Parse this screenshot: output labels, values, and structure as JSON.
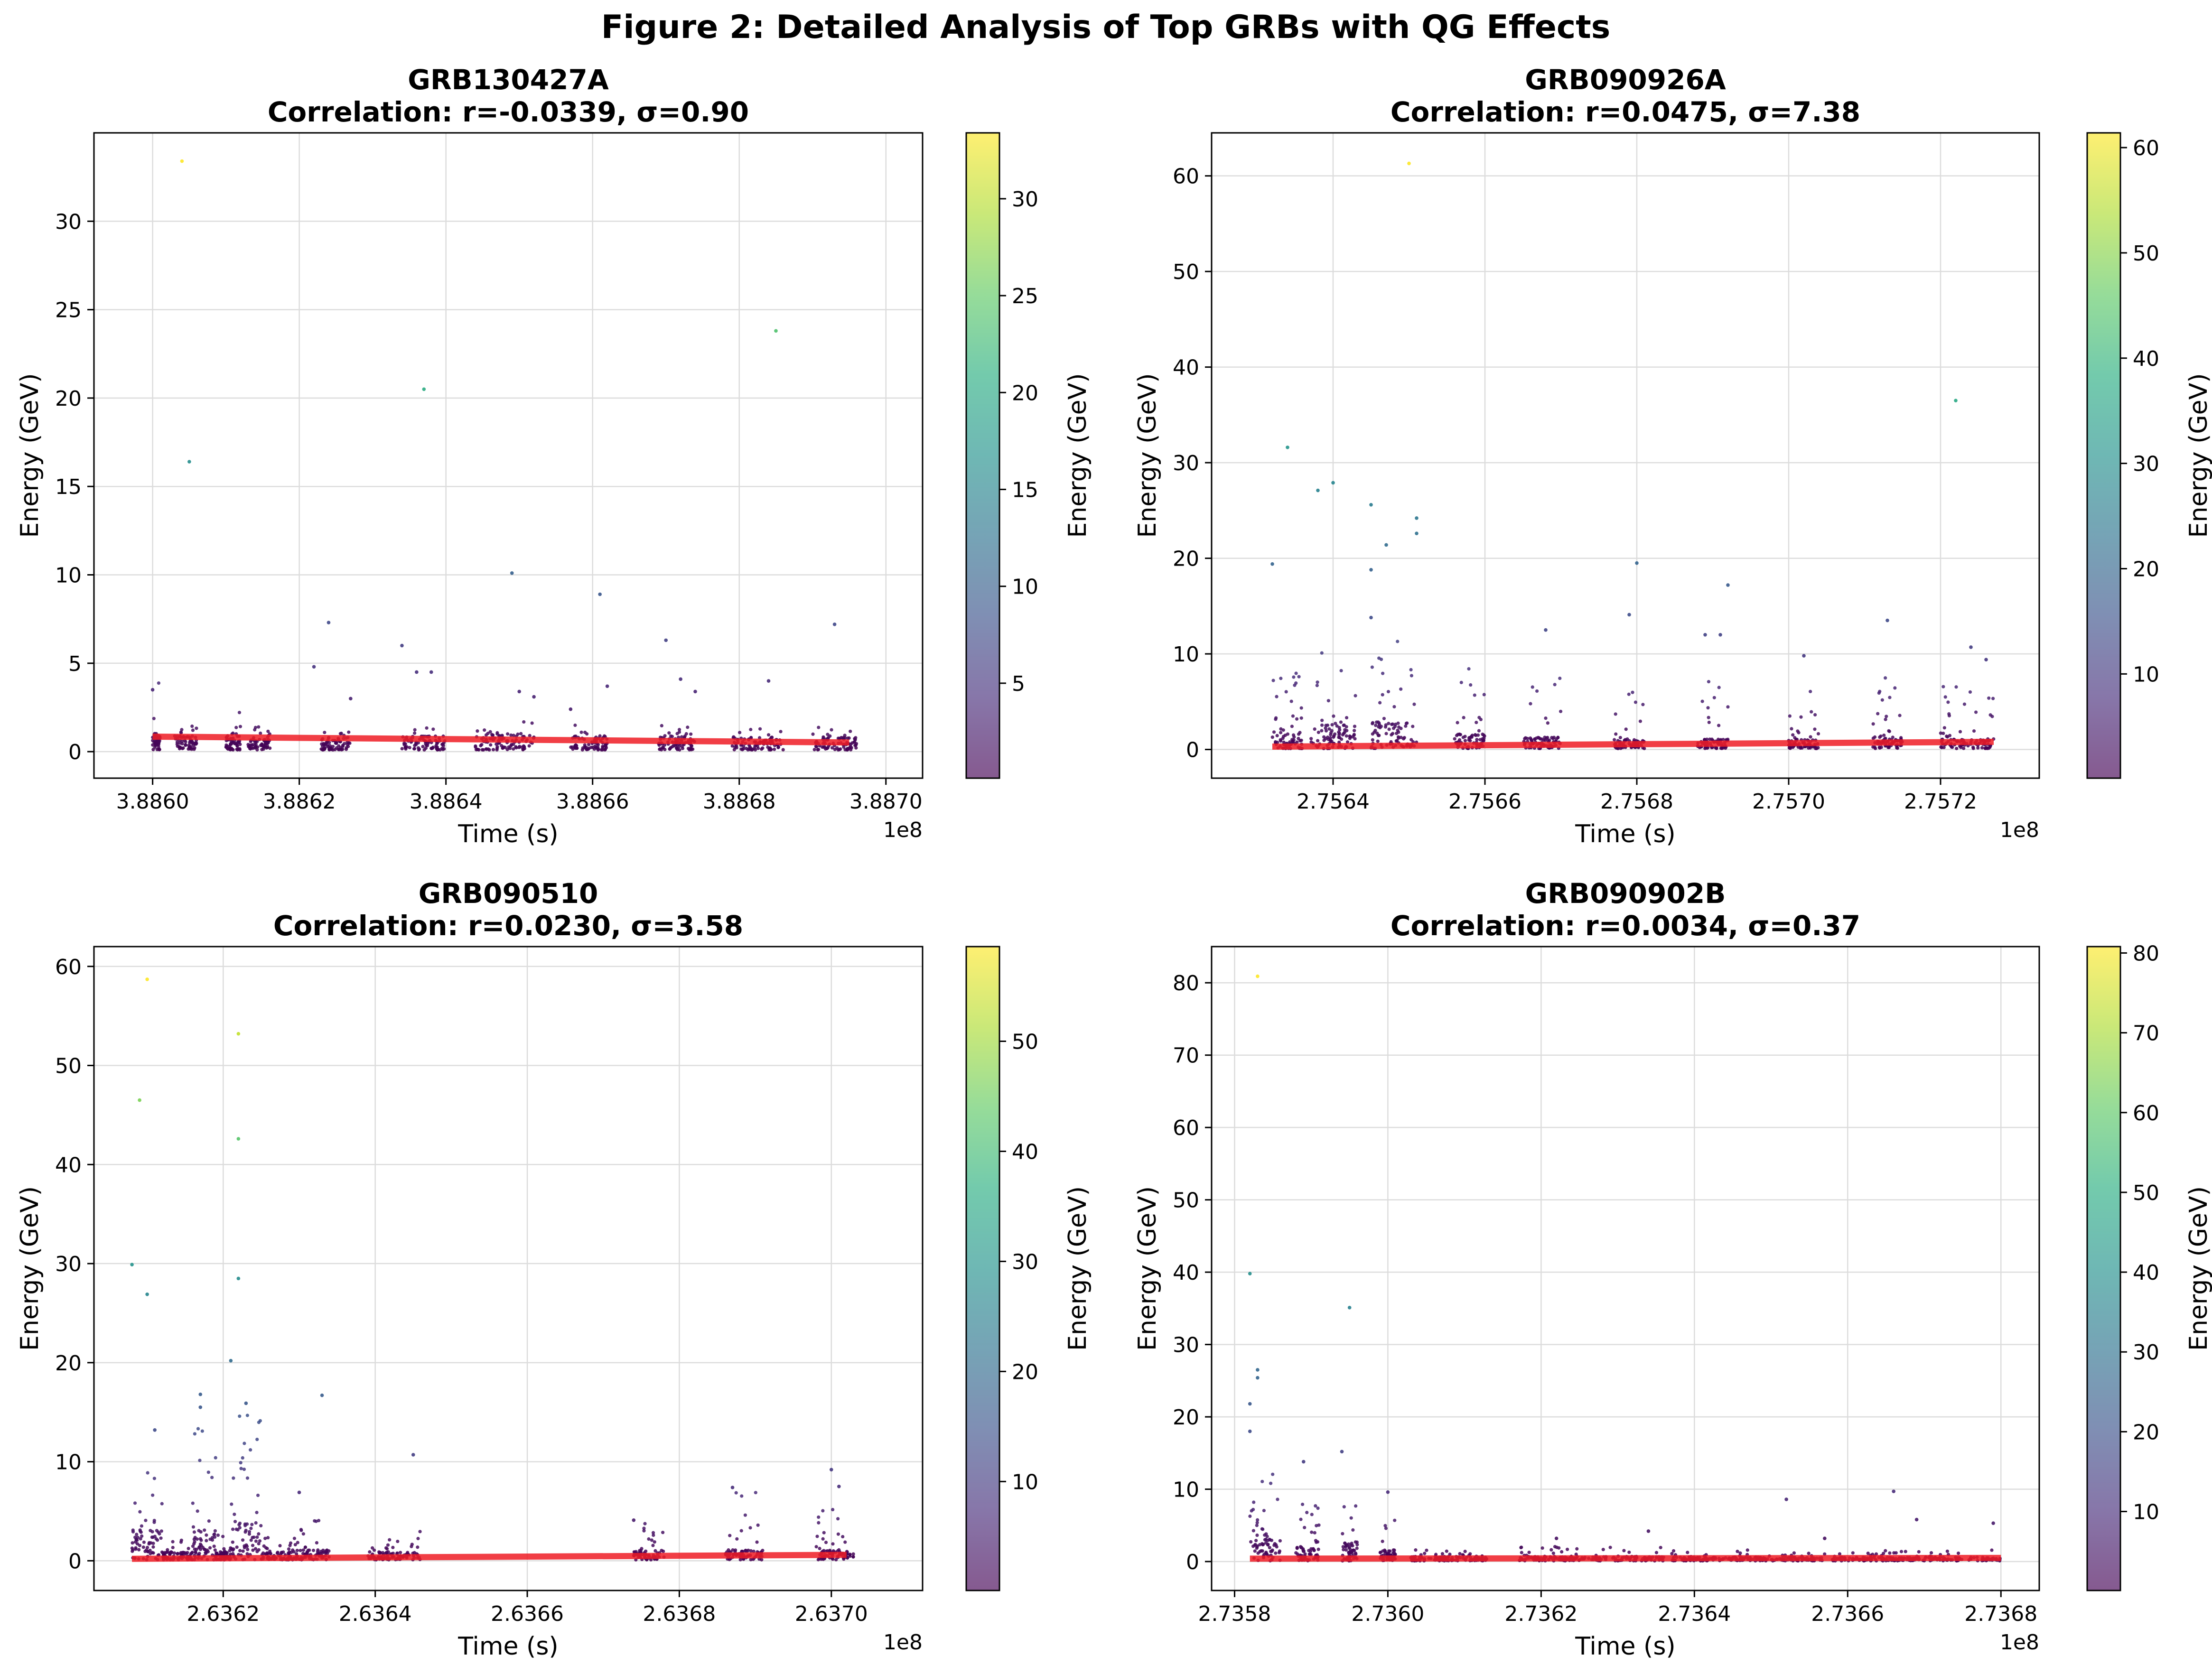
{
  "figure": {
    "suptitle": "Figure 2: Detailed Analysis of Top GRBs with QG Effects"
  },
  "chart_data": [
    {
      "type": "scatter",
      "title_line1": "GRB130427A",
      "title_line2": "Correlation: r=-0.0339, σ=0.90",
      "xlabel": "Time (s)",
      "ylabel": "Energy (GeV)",
      "colorbar_label": "Energy (GeV)",
      "x_offset_label": "1e8",
      "x_scale": 100000000,
      "xlim": [
        3.88592,
        3.88705
      ],
      "ylim": [
        -1.5,
        35
      ],
      "xticks": [
        3.886,
        3.8862,
        3.8864,
        3.8866,
        3.8868,
        3.887
      ],
      "xtick_labels": [
        "3.8860",
        "3.8862",
        "3.8864",
        "3.8866",
        "3.8868",
        "3.8870"
      ],
      "yticks": [
        0,
        5,
        10,
        15,
        20,
        25,
        30
      ],
      "cbar_range": [
        0.1,
        33.4
      ],
      "cbar_ticks": [
        5,
        10,
        15,
        20,
        25,
        30
      ],
      "grid": true,
      "trend_line": [
        [
          3.886,
          0.85
        ],
        [
          3.88695,
          0.52
        ]
      ],
      "clusters": [
        [
          3.886,
          3.88601,
          1.0,
          3.8
        ],
        [
          3.88603,
          3.88606,
          0.8,
          2.0
        ],
        [
          3.8861,
          3.88612,
          0.8,
          2.3
        ],
        [
          3.88613,
          3.88616,
          0.6,
          1.4
        ],
        [
          3.88623,
          3.88627,
          0.7,
          1.2
        ],
        [
          3.88634,
          3.8864,
          0.8,
          1.5
        ],
        [
          3.88644,
          3.88652,
          0.9,
          1.6
        ],
        [
          3.88657,
          3.88662,
          0.8,
          1.5
        ],
        [
          3.88669,
          3.88674,
          0.8,
          1.4
        ],
        [
          3.88679,
          3.88686,
          0.7,
          1.2
        ],
        [
          3.8869,
          3.88696,
          0.7,
          1.3
        ]
      ],
      "highlights": [
        [
          3.88604,
          33.4
        ],
        [
          3.88605,
          16.4
        ],
        [
          3.88637,
          20.5
        ],
        [
          3.88685,
          23.8
        ],
        [
          3.88649,
          10.1
        ],
        [
          3.88661,
          8.9
        ],
        [
          3.88624,
          7.3
        ],
        [
          3.88693,
          7.2
        ],
        [
          3.8867,
          6.3
        ],
        [
          3.88634,
          6.0
        ],
        [
          3.88622,
          4.8
        ],
        [
          3.88636,
          4.5
        ],
        [
          3.88638,
          4.5
        ],
        [
          3.88672,
          4.1
        ],
        [
          3.88684,
          4.0
        ],
        [
          3.8865,
          3.4
        ],
        [
          3.88662,
          3.7
        ],
        [
          3.88674,
          3.4
        ],
        [
          3.88627,
          3.0
        ],
        [
          3.88652,
          3.1
        ],
        [
          3.88657,
          2.4
        ],
        [
          3.886,
          3.5
        ]
      ]
    },
    {
      "type": "scatter",
      "title_line1": "GRB090926A",
      "title_line2": "Correlation: r=0.0475, σ=7.38",
      "xlabel": "Time (s)",
      "ylabel": "Energy (GeV)",
      "colorbar_label": "Energy (GeV)",
      "x_offset_label": "1e8",
      "x_scale": 100000000,
      "xlim": [
        2.75624,
        2.75733
      ],
      "ylim": [
        -3,
        64.5
      ],
      "xticks": [
        2.7564,
        2.7566,
        2.7568,
        2.757,
        2.7572
      ],
      "xtick_labels": [
        "2.7564",
        "2.7566",
        "2.7568",
        "2.7570",
        "2.7572"
      ],
      "yticks": [
        0,
        10,
        20,
        30,
        40,
        50,
        60
      ],
      "cbar_range": [
        0.1,
        61.4
      ],
      "cbar_ticks": [
        10,
        20,
        30,
        40,
        50,
        60
      ],
      "grid": true,
      "trend_line": [
        [
          2.75632,
          0.3
        ],
        [
          2.75727,
          0.8
        ]
      ],
      "clusters": [
        [
          2.75632,
          2.75636,
          1.8,
          8.0
        ],
        [
          2.75637,
          2.75643,
          2.5,
          10.0
        ],
        [
          2.75645,
          2.75651,
          2.8,
          12.0
        ],
        [
          2.75656,
          2.7566,
          1.5,
          9.0
        ],
        [
          2.75665,
          2.7567,
          1.2,
          8.0
        ],
        [
          2.75677,
          2.75681,
          1.0,
          7.0
        ],
        [
          2.75688,
          2.75692,
          1.0,
          7.0
        ],
        [
          2.757,
          2.75704,
          1.0,
          6.0
        ],
        [
          2.75711,
          2.75715,
          1.2,
          8.0
        ],
        [
          2.7572,
          2.75727,
          1.0,
          7.0
        ]
      ],
      "highlights": [
        [
          2.7565,
          61.3
        ],
        [
          2.75722,
          36.5
        ],
        [
          2.75634,
          31.6
        ],
        [
          2.7564,
          27.9
        ],
        [
          2.75638,
          27.1
        ],
        [
          2.75645,
          25.6
        ],
        [
          2.75651,
          24.2
        ],
        [
          2.75651,
          22.6
        ],
        [
          2.75647,
          21.4
        ],
        [
          2.75632,
          19.4
        ],
        [
          2.7568,
          19.5
        ],
        [
          2.75645,
          18.8
        ],
        [
          2.75692,
          17.2
        ],
        [
          2.75679,
          14.1
        ],
        [
          2.75713,
          13.5
        ],
        [
          2.75645,
          13.8
        ],
        [
          2.75668,
          12.5
        ],
        [
          2.75689,
          12.0
        ],
        [
          2.75691,
          12.0
        ],
        [
          2.75702,
          9.8
        ],
        [
          2.75724,
          10.7
        ],
        [
          2.75726,
          9.4
        ]
      ]
    },
    {
      "type": "scatter",
      "title_line1": "GRB090510",
      "title_line2": "Correlation: r=0.0230, σ=3.58",
      "xlabel": "Time (s)",
      "ylabel": "Energy (GeV)",
      "colorbar_label": "Energy (GeV)",
      "x_offset_label": "1e8",
      "x_scale": 100000000,
      "xlim": [
        2.63603,
        2.63712
      ],
      "ylim": [
        -3,
        62
      ],
      "xticks": [
        2.6362,
        2.6364,
        2.6366,
        2.6368,
        2.637
      ],
      "xtick_labels": [
        "2.6362",
        "2.6364",
        "2.6366",
        "2.6368",
        "2.6370"
      ],
      "yticks": [
        0,
        10,
        20,
        30,
        40,
        50,
        60
      ],
      "cbar_range": [
        0.1,
        58.6
      ],
      "cbar_ticks": [
        10,
        20,
        30,
        40,
        50
      ],
      "grid": true,
      "trend_line": [
        [
          2.63608,
          0.2
        ],
        [
          2.63702,
          0.6
        ]
      ],
      "clusters": [
        [
          2.63608,
          2.63612,
          3.0,
          12.0
        ],
        [
          2.63612,
          2.63616,
          0.8,
          3.0
        ],
        [
          2.63616,
          2.63619,
          3.0,
          14.0
        ],
        [
          2.63619,
          2.63621,
          0.8,
          3.0
        ],
        [
          2.63621,
          2.63625,
          4.0,
          15.0
        ],
        [
          2.63625,
          2.63629,
          0.8,
          2.5
        ],
        [
          2.63629,
          2.63634,
          1.0,
          4.0
        ],
        [
          2.63639,
          2.63646,
          0.8,
          3.0
        ],
        [
          2.63674,
          2.63678,
          1.0,
          4.0
        ],
        [
          2.63686,
          2.63691,
          1.0,
          7.0
        ],
        [
          2.63698,
          2.63703,
          1.0,
          6.0
        ]
      ],
      "highlights": [
        [
          2.6361,
          58.7
        ],
        [
          2.63622,
          53.2
        ],
        [
          2.63609,
          46.5
        ],
        [
          2.63622,
          42.6
        ],
        [
          2.63608,
          29.9
        ],
        [
          2.6361,
          26.9
        ],
        [
          2.63622,
          28.5
        ],
        [
          2.63621,
          20.2
        ],
        [
          2.63633,
          16.7
        ],
        [
          2.63617,
          16.8
        ],
        [
          2.63617,
          15.5
        ],
        [
          2.63623,
          15.9
        ],
        [
          2.63611,
          13.2
        ],
        [
          2.63645,
          10.7
        ],
        [
          2.637,
          9.2
        ],
        [
          2.63701,
          7.5
        ],
        [
          2.63687,
          7.4
        ],
        [
          2.6363,
          6.9
        ],
        [
          2.63674,
          4.1
        ]
      ]
    },
    {
      "type": "scatter",
      "title_line1": "GRB090902B",
      "title_line2": "Correlation: r=0.0034, σ=0.37",
      "xlabel": "Time (s)",
      "ylabel": "Energy (GeV)",
      "colorbar_label": "Energy (GeV)",
      "x_offset_label": "1e8",
      "x_scale": 100000000,
      "xlim": [
        2.73577,
        2.73685
      ],
      "ylim": [
        -4,
        85
      ],
      "xticks": [
        2.7358,
        2.736,
        2.7362,
        2.7364,
        2.7366,
        2.7368
      ],
      "xtick_labels": [
        "2.7358",
        "2.7360",
        "2.7362",
        "2.7364",
        "2.7366",
        "2.7368"
      ],
      "yticks": [
        0,
        10,
        20,
        30,
        40,
        50,
        60,
        70,
        80
      ],
      "cbar_range": [
        0.1,
        80.8
      ],
      "cbar_ticks": [
        10,
        20,
        30,
        40,
        50,
        60,
        70,
        80
      ],
      "grid": true,
      "trend_line": [
        [
          2.73582,
          0.4
        ],
        [
          2.7368,
          0.5
        ]
      ],
      "clusters": [
        [
          2.73582,
          2.73586,
          3.0,
          12.0
        ],
        [
          2.73588,
          2.73591,
          2.0,
          8.0
        ],
        [
          2.73594,
          2.73596,
          2.5,
          8.0
        ],
        [
          2.73599,
          2.73601,
          1.5,
          6.0
        ],
        [
          2.73603,
          2.73613,
          0.6,
          1.5
        ],
        [
          2.73617,
          2.73636,
          0.6,
          2.0
        ],
        [
          2.73637,
          2.73657,
          0.5,
          1.5
        ],
        [
          2.73658,
          2.7368,
          0.5,
          1.5
        ]
      ],
      "highlights": [
        [
          2.73583,
          80.9
        ],
        [
          2.73582,
          39.8
        ],
        [
          2.73595,
          35.1
        ],
        [
          2.73583,
          26.5
        ],
        [
          2.73583,
          25.4
        ],
        [
          2.73582,
          21.8
        ],
        [
          2.73582,
          18.0
        ],
        [
          2.73594,
          15.2
        ],
        [
          2.73589,
          13.8
        ],
        [
          2.73666,
          9.7
        ],
        [
          2.73652,
          8.6
        ],
        [
          2.736,
          9.6
        ],
        [
          2.73669,
          5.8
        ],
        [
          2.73679,
          5.3
        ],
        [
          2.73634,
          4.2
        ],
        [
          2.73657,
          3.2
        ],
        [
          2.73622,
          3.2
        ]
      ]
    }
  ]
}
